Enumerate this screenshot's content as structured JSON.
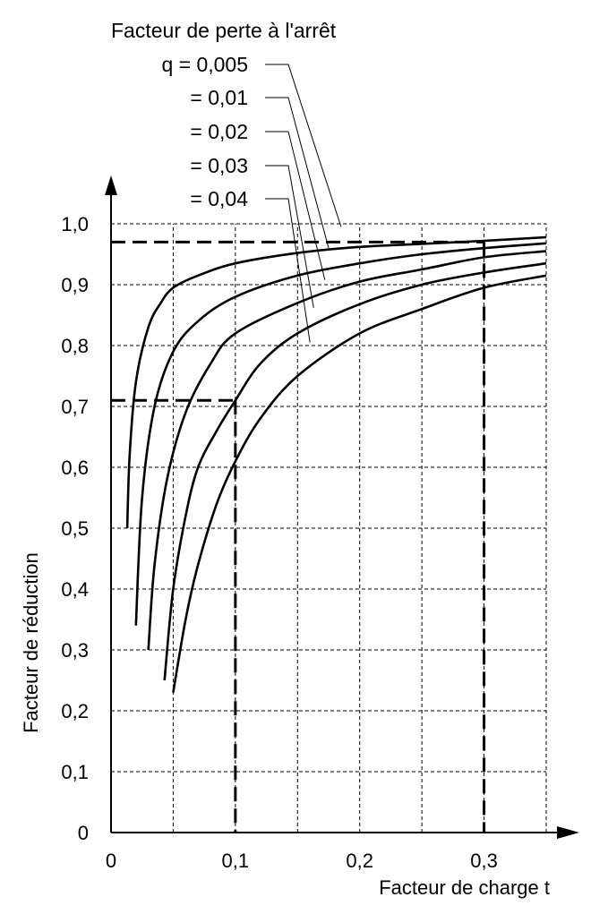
{
  "chart_data": {
    "type": "line",
    "title": "",
    "xlabel": "Facteur de charge t",
    "ylabel": "Facteur de réduction",
    "xlim": [
      0,
      0.35
    ],
    "ylim": [
      0,
      1.0
    ],
    "x_ticks": [
      {
        "value": 0,
        "label": "0"
      },
      {
        "value": 0.1,
        "label": "0,1"
      },
      {
        "value": 0.2,
        "label": "0,2"
      },
      {
        "value": 0.3,
        "label": "0,3"
      }
    ],
    "y_ticks": [
      {
        "value": 0,
        "label": "0"
      },
      {
        "value": 0.1,
        "label": "0,1"
      },
      {
        "value": 0.2,
        "label": "0,2"
      },
      {
        "value": 0.3,
        "label": "0,3"
      },
      {
        "value": 0.4,
        "label": "0,4"
      },
      {
        "value": 0.5,
        "label": "0,5"
      },
      {
        "value": 0.6,
        "label": "0,6"
      },
      {
        "value": 0.7,
        "label": "0,7"
      },
      {
        "value": 0.8,
        "label": "0,8"
      },
      {
        "value": 0.9,
        "label": "0,9"
      },
      {
        "value": 1.0,
        "label": "1,0"
      }
    ],
    "grid": true,
    "legend_title": "Facteur de perte à l'arrêt",
    "series": [
      {
        "name": "q = 0,005",
        "points": [
          [
            0.013,
            0.5
          ],
          [
            0.015,
            0.62
          ],
          [
            0.02,
            0.74
          ],
          [
            0.03,
            0.83
          ],
          [
            0.04,
            0.87
          ],
          [
            0.05,
            0.895
          ],
          [
            0.07,
            0.915
          ],
          [
            0.1,
            0.935
          ],
          [
            0.15,
            0.952
          ],
          [
            0.2,
            0.962
          ],
          [
            0.25,
            0.967
          ],
          [
            0.3,
            0.972
          ],
          [
            0.35,
            0.978
          ]
        ]
      },
      {
        "name": "= 0,01",
        "points": [
          [
            0.02,
            0.34
          ],
          [
            0.025,
            0.55
          ],
          [
            0.035,
            0.7
          ],
          [
            0.05,
            0.79
          ],
          [
            0.07,
            0.84
          ],
          [
            0.1,
            0.88
          ],
          [
            0.15,
            0.915
          ],
          [
            0.2,
            0.935
          ],
          [
            0.25,
            0.95
          ],
          [
            0.3,
            0.96
          ],
          [
            0.35,
            0.968
          ]
        ]
      },
      {
        "name": "= 0,02",
        "points": [
          [
            0.03,
            0.3
          ],
          [
            0.035,
            0.44
          ],
          [
            0.045,
            0.58
          ],
          [
            0.06,
            0.69
          ],
          [
            0.08,
            0.77
          ],
          [
            0.1,
            0.82
          ],
          [
            0.15,
            0.87
          ],
          [
            0.2,
            0.905
          ],
          [
            0.25,
            0.925
          ],
          [
            0.3,
            0.945
          ],
          [
            0.35,
            0.955
          ]
        ]
      },
      {
        "name": "= 0,03",
        "points": [
          [
            0.043,
            0.25
          ],
          [
            0.05,
            0.4
          ],
          [
            0.06,
            0.52
          ],
          [
            0.07,
            0.6
          ],
          [
            0.085,
            0.66
          ],
          [
            0.1,
            0.71
          ],
          [
            0.12,
            0.77
          ],
          [
            0.15,
            0.82
          ],
          [
            0.2,
            0.868
          ],
          [
            0.25,
            0.9
          ],
          [
            0.3,
            0.92
          ],
          [
            0.35,
            0.935
          ]
        ]
      },
      {
        "name": "= 0,04",
        "points": [
          [
            0.05,
            0.23
          ],
          [
            0.06,
            0.35
          ],
          [
            0.07,
            0.44
          ],
          [
            0.085,
            0.54
          ],
          [
            0.1,
            0.61
          ],
          [
            0.12,
            0.68
          ],
          [
            0.15,
            0.75
          ],
          [
            0.2,
            0.82
          ],
          [
            0.25,
            0.86
          ],
          [
            0.3,
            0.895
          ],
          [
            0.35,
            0.915
          ]
        ]
      }
    ],
    "reference_lines": [
      {
        "from": [
          0,
          0.97
        ],
        "to": [
          0.3,
          0.97
        ]
      },
      {
        "from": [
          0.3,
          0.97
        ],
        "to": [
          0.3,
          0
        ]
      },
      {
        "from": [
          0,
          0.71
        ],
        "to": [
          0.1,
          0.71
        ]
      },
      {
        "from": [
          0.1,
          0.71
        ],
        "to": [
          0.1,
          0
        ]
      }
    ]
  }
}
